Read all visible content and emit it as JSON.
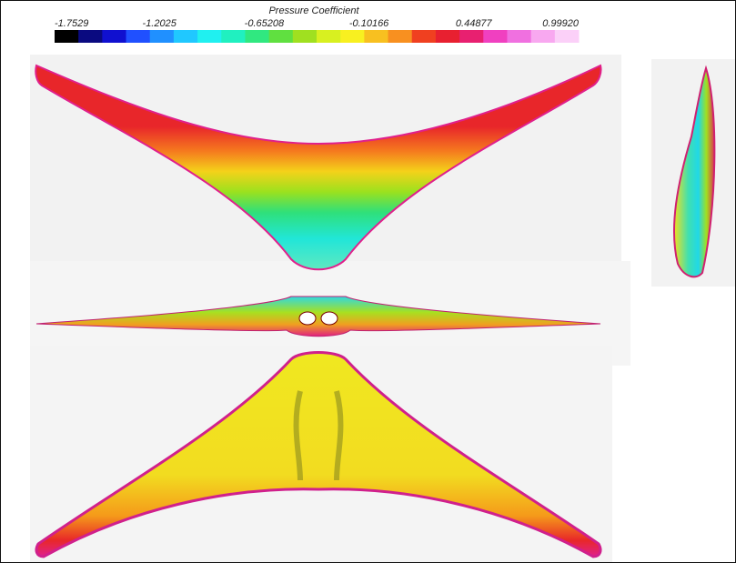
{
  "colorbar": {
    "title": "Pressure Coefficient",
    "tick_labels": [
      "-1.7529",
      "-1.2025",
      "-0.65208",
      "-0.10166",
      "0.44877",
      "0.99920"
    ]
  }
}
